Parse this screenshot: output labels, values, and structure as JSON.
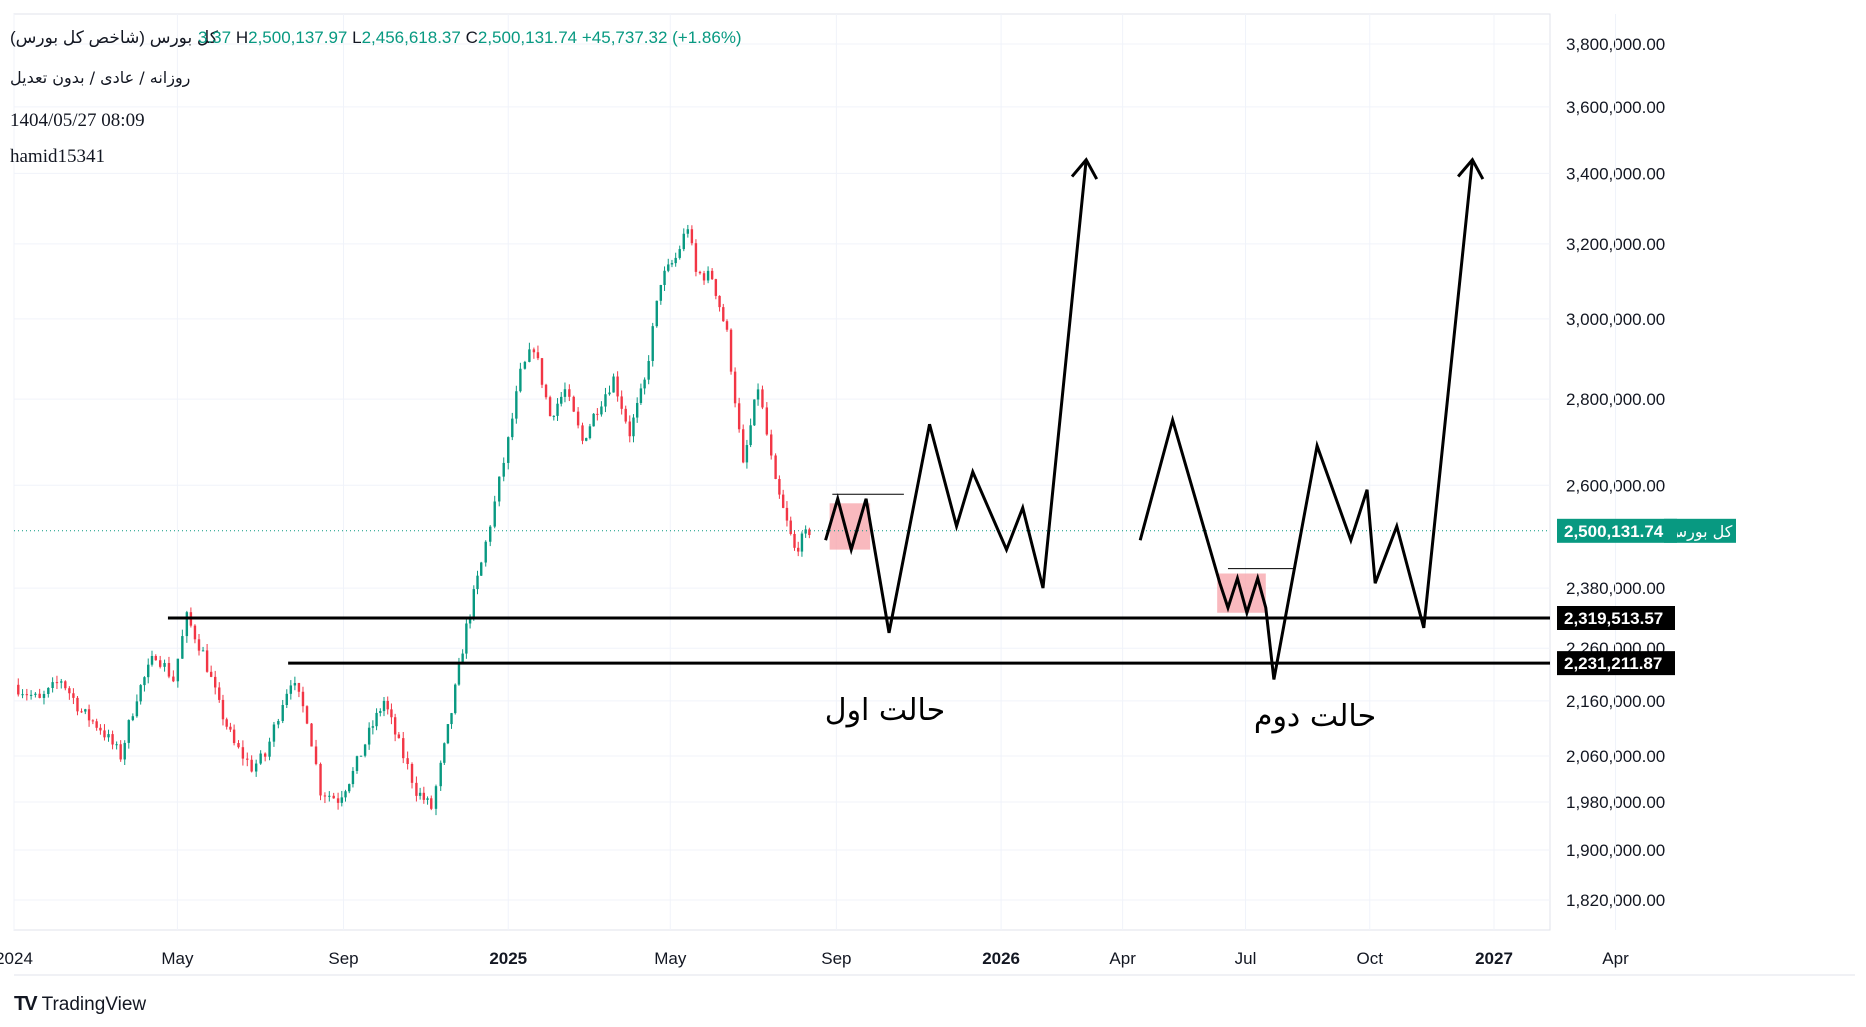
{
  "header": {
    "title": "کل بورس (شاخص کل بورس)",
    "open_label": "",
    "open_value": "3.37",
    "high_label": "H",
    "high_value": "2,500,137.97",
    "low_label": "L",
    "low_value": "2,456,618.37",
    "close_label": "C",
    "close_value": "2,500,131.74",
    "change": "+45,737.32 (+1.86%)",
    "interval": "روزانه / عادی / بدون تعدیل",
    "datetime": "1404/05/27 08:09",
    "author": "hamid15341"
  },
  "brand": {
    "name": "TradingView",
    "logo": "TV"
  },
  "colors": {
    "up": "#089981",
    "down": "#f23645",
    "price_tag": "#089981",
    "line_tag": "#000000",
    "highlight": "#f7a1a8",
    "grid": "#f0f3fa",
    "text": "#131722"
  },
  "chart_data": {
    "type": "candlestick",
    "title": "کل بورس (شاخص کل بورس)",
    "y_axis": {
      "ticks": [
        3800000,
        3600000,
        3400000,
        3200000,
        3000000,
        2800000,
        2600000,
        2380000,
        2260000,
        2160000,
        2060000,
        1980000,
        1900000,
        1820000
      ],
      "tick_labels": [
        "3,800,000.00",
        "3,600,000.00",
        "3,400,000.00",
        "3,200,000.00",
        "3,000,000.00",
        "2,800,000.00",
        "2,600,000.00",
        "2,380,000.00",
        "2,260,000.00",
        "2,160,000.00",
        "2,060,000.00",
        "1,980,000.00",
        "1,900,000.00",
        "1,820,000.00"
      ],
      "scale": "log"
    },
    "x_axis": {
      "ticks": [
        "2024",
        "May",
        "Sep",
        "2025",
        "May",
        "Sep",
        "2026",
        "Apr",
        "Jul",
        "Oct",
        "2027",
        "Apr"
      ],
      "tick_dates": [
        "2024-01-01",
        "2024-05-01",
        "2024-09-01",
        "2025-01-01",
        "2025-05-01",
        "2025-09-01",
        "2026-01-01",
        "2026-04-01",
        "2026-07-01",
        "2026-10-01",
        "2027-01-01",
        "2027-04-01"
      ],
      "bold": [
        "2025",
        "2026",
        "2027"
      ]
    },
    "price_series": [
      [
        "2024-01-01",
        2190000
      ],
      [
        "2024-01-20",
        2160000
      ],
      [
        "2024-02-05",
        2200000
      ],
      [
        "2024-02-20",
        2140000
      ],
      [
        "2024-03-05",
        2110000
      ],
      [
        "2024-03-20",
        2060000
      ],
      [
        "2024-04-01",
        2170000
      ],
      [
        "2024-04-15",
        2250000
      ],
      [
        "2024-04-28",
        2200000
      ],
      [
        "2024-05-08",
        2320000
      ],
      [
        "2024-05-20",
        2250000
      ],
      [
        "2024-06-01",
        2150000
      ],
      [
        "2024-06-12",
        2080000
      ],
      [
        "2024-06-25",
        2040000
      ],
      [
        "2024-07-05",
        2060000
      ],
      [
        "2024-07-18",
        2160000
      ],
      [
        "2024-07-24",
        2200000
      ],
      [
        "2024-08-05",
        2130000
      ],
      [
        "2024-08-15",
        2000000
      ],
      [
        "2024-08-28",
        1985000
      ],
      [
        "2024-09-08",
        2030000
      ],
      [
        "2024-09-20",
        2100000
      ],
      [
        "2024-10-01",
        2160000
      ],
      [
        "2024-10-12",
        2080000
      ],
      [
        "2024-10-25",
        2000000
      ],
      [
        "2024-11-05",
        1970000
      ],
      [
        "2024-11-12",
        2040000
      ],
      [
        "2024-11-20",
        2140000
      ],
      [
        "2024-12-01",
        2300000
      ],
      [
        "2024-12-12",
        2430000
      ],
      [
        "2024-12-22",
        2560000
      ],
      [
        "2025-01-01",
        2700000
      ],
      [
        "2025-01-10",
        2860000
      ],
      [
        "2025-01-20",
        2930000
      ],
      [
        "2025-02-01",
        2760000
      ],
      [
        "2025-02-12",
        2820000
      ],
      [
        "2025-02-25",
        2700000
      ],
      [
        "2025-03-08",
        2780000
      ],
      [
        "2025-03-20",
        2850000
      ],
      [
        "2025-04-01",
        2720000
      ],
      [
        "2025-04-12",
        2840000
      ],
      [
        "2025-04-24",
        3100000
      ],
      [
        "2025-05-05",
        3160000
      ],
      [
        "2025-05-14",
        3250000
      ],
      [
        "2025-05-20",
        3120000
      ],
      [
        "2025-06-01",
        3110000
      ],
      [
        "2025-06-12",
        2960000
      ],
      [
        "2025-06-24",
        2640000
      ],
      [
        "2025-07-05",
        2830000
      ],
      [
        "2025-07-18",
        2600000
      ],
      [
        "2025-08-01",
        2460000
      ],
      [
        "2025-08-12",
        2500131.74
      ]
    ],
    "reference_lines": [
      {
        "value": 2319513.57,
        "label": "2,319,513.57",
        "from": "2024-04-24"
      },
      {
        "value": 2231211.87,
        "label": "2,231,211.87",
        "from": "2024-07-22"
      },
      {
        "value": 2500131.74,
        "label": "2,500,131.74",
        "tag": "کل بورس",
        "style": "dotted"
      }
    ],
    "scenarios": [
      {
        "label": "حالت اول",
        "path": [
          [
            "2025-08-24",
            2480000
          ],
          [
            "2025-09-02",
            2570000
          ],
          [
            "2025-09-12",
            2460000
          ],
          [
            "2025-09-23",
            2570000
          ],
          [
            "2025-10-10",
            2290000
          ],
          [
            "2025-11-09",
            2740000
          ],
          [
            "2025-11-29",
            2510000
          ],
          [
            "2025-12-11",
            2630000
          ],
          [
            "2026-01-05",
            2460000
          ],
          [
            "2026-01-17",
            2550000
          ],
          [
            "2026-02-01",
            2380000
          ],
          [
            "2026-03-05",
            3440000
          ]
        ],
        "box": {
          "from": "2025-08-27",
          "to": "2025-09-26",
          "top": 2560000,
          "bottom": 2460000
        },
        "resistance": {
          "from": "2025-08-29",
          "to": "2025-10-21",
          "value": 2580000
        }
      },
      {
        "label": "حالت دوم",
        "path": [
          [
            "2026-04-14",
            2480000
          ],
          [
            "2026-05-08",
            2750000
          ],
          [
            "2026-06-12",
            2390000
          ],
          [
            "2026-06-18",
            2340000
          ],
          [
            "2026-06-25",
            2400000
          ],
          [
            "2026-07-02",
            2330000
          ],
          [
            "2026-07-10",
            2400000
          ],
          [
            "2026-07-16",
            2340000
          ],
          [
            "2026-07-22",
            2200000
          ],
          [
            "2026-08-23",
            2690000
          ],
          [
            "2026-09-17",
            2480000
          ],
          [
            "2026-09-29",
            2590000
          ],
          [
            "2026-10-05",
            2390000
          ],
          [
            "2026-10-21",
            2510000
          ],
          [
            "2026-11-10",
            2300000
          ],
          [
            "2026-12-16",
            3440000
          ]
        ],
        "box": {
          "from": "2026-06-10",
          "to": "2026-07-16",
          "top": 2410000,
          "bottom": 2330000
        },
        "resistance": {
          "from": "2026-06-18",
          "to": "2026-08-06",
          "value": 2420000
        }
      }
    ]
  }
}
